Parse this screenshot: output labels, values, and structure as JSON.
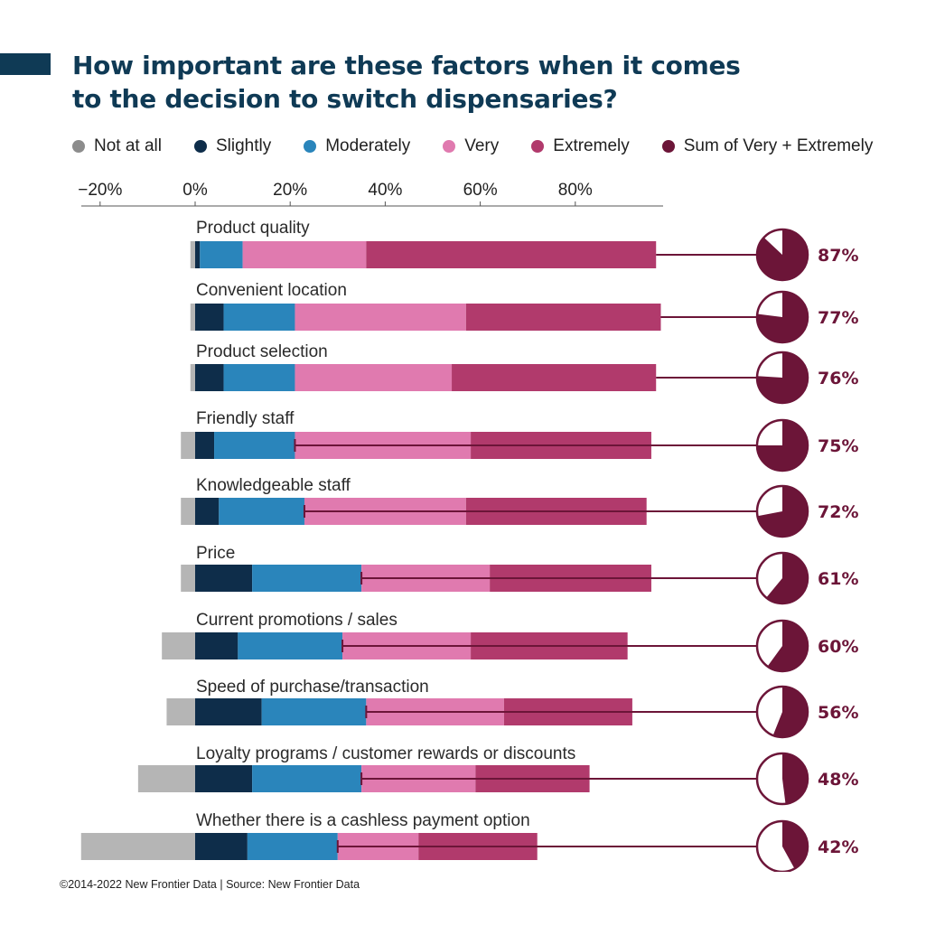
{
  "colors": {
    "accent": "#0f3a55",
    "title": "#0f3a55",
    "not_at_all": "#b5b5b5",
    "not_at_all_legend": "#8c8c8c",
    "slightly": "#0e2d4a",
    "moderately": "#2a85bb",
    "very": "#e07aaf",
    "extremely": "#b13a6c",
    "sum": "#6c1538",
    "axis": "#555555"
  },
  "title": {
    "line1": "How important are these factors when it comes",
    "line2": "to the decision to switch dispensaries?"
  },
  "legend": [
    {
      "label": "Not at all",
      "color": "#8c8c8c"
    },
    {
      "label": "Slightly",
      "color": "#0e2d4a"
    },
    {
      "label": "Moderately",
      "color": "#2a85bb"
    },
    {
      "label": "Very",
      "color": "#e07aaf"
    },
    {
      "label": "Extremely",
      "color": "#b13a6c"
    },
    {
      "label": "Sum of Very + Extremely",
      "color": "#6c1538"
    }
  ],
  "footer": "©2014-2022  New Frontier Data | Source: New Frontier Data",
  "chart_data": {
    "type": "bar",
    "orientation": "horizontal",
    "stacked": "diverging",
    "xlim": [
      -24,
      100
    ],
    "ticks": [
      {
        "value": -20,
        "label": "−20%"
      },
      {
        "value": 0,
        "label": "0%"
      },
      {
        "value": 20,
        "label": "20%"
      },
      {
        "value": 40,
        "label": "40%"
      },
      {
        "value": 60,
        "label": "60%"
      },
      {
        "value": 80,
        "label": "80%"
      }
    ],
    "legend_position": "top",
    "series_names": [
      "Not at all",
      "Slightly",
      "Moderately",
      "Very",
      "Extremely",
      "Sum of Very + Extremely"
    ],
    "categories": [
      {
        "label": "Product quality",
        "not_at_all": 1,
        "slightly": 1,
        "moderately": 9,
        "very": 26,
        "extremely": 61,
        "sum": 87,
        "sum_label": "87%"
      },
      {
        "label": "Convenient location",
        "not_at_all": 1,
        "slightly": 6,
        "moderately": 15,
        "very": 36,
        "extremely": 41,
        "sum": 77,
        "sum_label": "77%"
      },
      {
        "label": "Product selection",
        "not_at_all": 1,
        "slightly": 6,
        "moderately": 15,
        "very": 33,
        "extremely": 43,
        "sum": 76,
        "sum_label": "76%"
      },
      {
        "label": "Friendly staff",
        "not_at_all": 3,
        "slightly": 4,
        "moderately": 17,
        "very": 37,
        "extremely": 38,
        "sum": 75,
        "sum_label": "75%"
      },
      {
        "label": "Knowledgeable staff",
        "not_at_all": 3,
        "slightly": 5,
        "moderately": 18,
        "very": 34,
        "extremely": 38,
        "sum": 72,
        "sum_label": "72%"
      },
      {
        "label": "Price",
        "not_at_all": 3,
        "slightly": 12,
        "moderately": 23,
        "very": 27,
        "extremely": 34,
        "sum": 61,
        "sum_label": "61%"
      },
      {
        "label": "Current promotions / sales",
        "not_at_all": 7,
        "slightly": 9,
        "moderately": 22,
        "very": 27,
        "extremely": 33,
        "sum": 60,
        "sum_label": "60%"
      },
      {
        "label": "Speed of purchase/transaction",
        "not_at_all": 6,
        "slightly": 14,
        "moderately": 22,
        "very": 29,
        "extremely": 27,
        "sum": 56,
        "sum_label": "56%"
      },
      {
        "label": "Loyalty programs / customer rewards or discounts",
        "not_at_all": 12,
        "slightly": 12,
        "moderately": 23,
        "very": 24,
        "extremely": 24,
        "sum": 48,
        "sum_label": "48%"
      },
      {
        "label": "Whether there is a cashless payment option",
        "not_at_all": 24,
        "slightly": 11,
        "moderately": 19,
        "very": 17,
        "extremely": 25,
        "sum": 42,
        "sum_label": "42%"
      }
    ]
  }
}
